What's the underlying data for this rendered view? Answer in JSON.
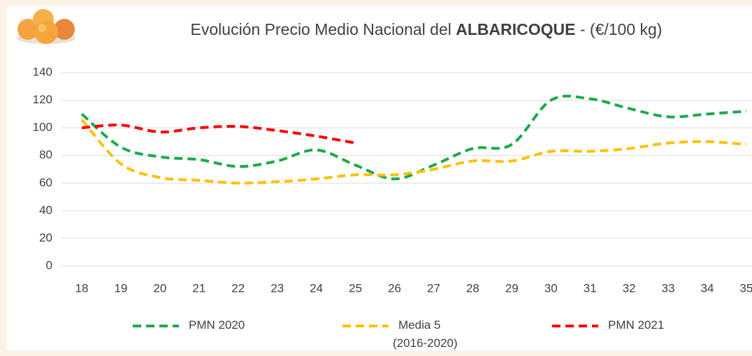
{
  "chart_data": {
    "type": "line",
    "title": [
      "Evolución Precio Medio Nacional del ",
      "ALBARICOQUE",
      "  - (€/100 kg)"
    ],
    "categories": [
      "18",
      "19",
      "20",
      "21",
      "22",
      "23",
      "24",
      "25",
      "26",
      "27",
      "28",
      "29",
      "30",
      "31",
      "32",
      "33",
      "34",
      "35"
    ],
    "series": [
      {
        "name": "PMN 2020",
        "color": "#1aab4b",
        "values": [
          110,
          86,
          79,
          77,
          72,
          76,
          84,
          73,
          63,
          73,
          85,
          88,
          120,
          121,
          114,
          108,
          110,
          112
        ]
      },
      {
        "name": "Media 5\n(2016-2020)",
        "color": "#ffc000",
        "values": [
          106,
          74,
          64,
          62,
          60,
          61,
          63,
          66,
          66,
          70,
          76,
          76,
          83,
          83,
          85,
          89,
          90,
          88
        ]
      },
      {
        "name": "PMN 2021",
        "color": "#ff0000",
        "values": [
          100,
          102,
          97,
          100,
          101,
          98,
          94,
          89,
          null,
          null,
          null,
          null,
          null,
          null,
          null,
          null,
          null,
          null
        ]
      }
    ],
    "ylim": [
      0,
      140
    ],
    "yticks": [
      0,
      20,
      40,
      60,
      80,
      100,
      120,
      140
    ],
    "grid": true,
    "legend": "bottom"
  }
}
